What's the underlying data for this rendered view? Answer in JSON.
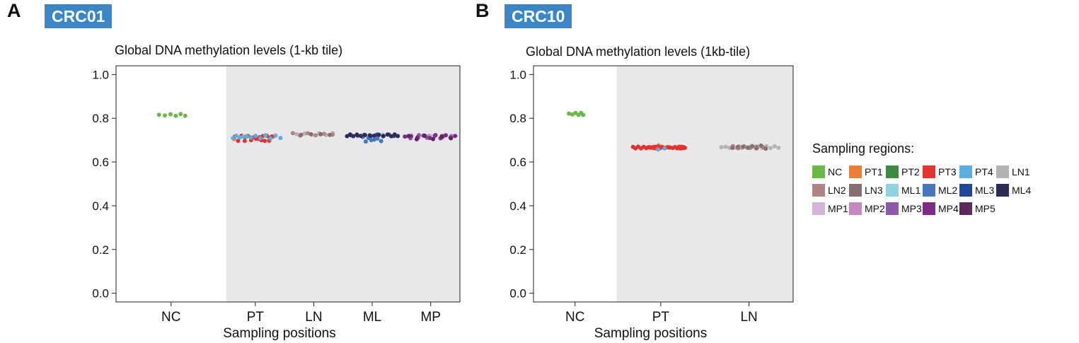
{
  "panels": [
    {
      "letter": "A",
      "badge": "CRC01",
      "chart_data": {
        "type": "scatter",
        "title": "Global DNA methylation levels (1-kb tile)",
        "xlabel": "Sampling positions",
        "ylabel": "",
        "categories": [
          "NC",
          "PT",
          "LN",
          "ML",
          "MP"
        ],
        "shaded_categories": [
          "PT",
          "LN",
          "ML",
          "MP"
        ],
        "ylim": [
          -0.04,
          1.04
        ],
        "yticks": [
          "0.0",
          "0.2",
          "0.4",
          "0.6",
          "0.8",
          "1.0"
        ],
        "series": [
          {
            "name": "NC",
            "category": "NC",
            "n": 6,
            "center": 0.815,
            "spread": 0.004,
            "width": 0.28
          },
          {
            "name": "PT1",
            "category": "PT",
            "n": 4,
            "center": 0.712,
            "spread": 0.007,
            "width": 0.8
          },
          {
            "name": "PT2",
            "category": "PT",
            "n": 2,
            "center": 0.712,
            "spread": 0.005,
            "width": 0.5
          },
          {
            "name": "PT3",
            "category": "PT",
            "n": 16,
            "center": 0.708,
            "spread": 0.012,
            "width": 0.75
          },
          {
            "name": "PT4",
            "category": "PT",
            "n": 12,
            "center": 0.715,
            "spread": 0.007,
            "width": 0.95
          },
          {
            "name": "LN1",
            "category": "LN",
            "n": 6,
            "center": 0.728,
            "spread": 0.004,
            "width": 0.7
          },
          {
            "name": "LN2",
            "category": "LN",
            "n": 6,
            "center": 0.726,
            "spread": 0.006,
            "width": 0.8
          },
          {
            "name": "LN3",
            "category": "LN",
            "n": 4,
            "center": 0.726,
            "spread": 0.005,
            "width": 0.6
          },
          {
            "name": "ML1",
            "category": "ML",
            "n": 2,
            "center": 0.722,
            "spread": 0.003,
            "width": 0.5
          },
          {
            "name": "ML2",
            "category": "ML",
            "n": 7,
            "center": 0.703,
            "spread": 0.012,
            "width": 0.45
          },
          {
            "name": "ML3",
            "category": "ML",
            "n": 8,
            "center": 0.722,
            "spread": 0.004,
            "width": 0.85
          },
          {
            "name": "ML4",
            "category": "ML",
            "n": 14,
            "center": 0.722,
            "spread": 0.004,
            "width": 1.0
          },
          {
            "name": "MP1",
            "category": "MP",
            "n": 5,
            "center": 0.72,
            "spread": 0.006,
            "width": 0.85
          },
          {
            "name": "MP2",
            "category": "MP",
            "n": 5,
            "center": 0.714,
            "spread": 0.006,
            "width": 0.85
          },
          {
            "name": "MP3",
            "category": "MP",
            "n": 6,
            "center": 0.716,
            "spread": 0.008,
            "width": 0.9
          },
          {
            "name": "MP4",
            "category": "MP",
            "n": 10,
            "center": 0.716,
            "spread": 0.007,
            "width": 1.0
          },
          {
            "name": "MP5",
            "category": "MP",
            "n": 6,
            "center": 0.712,
            "spread": 0.008,
            "width": 0.9
          }
        ]
      }
    },
    {
      "letter": "B",
      "badge": "CRC10",
      "chart_data": {
        "type": "scatter",
        "title": "Global DNA methylation levels (1kb-tile)",
        "xlabel": "Sampling positions",
        "ylabel": "",
        "categories": [
          "NC",
          "PT",
          "LN"
        ],
        "shaded_categories": [
          "PT",
          "LN"
        ],
        "ylim": [
          -0.04,
          1.04
        ],
        "yticks": [
          "0.0",
          "0.2",
          "0.4",
          "0.6",
          "0.8",
          "1.0"
        ],
        "series": [
          {
            "name": "NC",
            "category": "NC",
            "n": 6,
            "center": 0.82,
            "spread": 0.005,
            "width": 0.2
          },
          {
            "name": "PT1",
            "category": "PT",
            "n": 3,
            "center": 0.672,
            "spread": 0.004,
            "width": 0.25
          },
          {
            "name": "PT2",
            "category": "PT",
            "n": 3,
            "center": 0.667,
            "spread": 0.004,
            "width": 0.2
          },
          {
            "name": "PT3",
            "category": "PT",
            "n": 28,
            "center": 0.666,
            "spread": 0.004,
            "width": 0.7
          },
          {
            "name": "PT4",
            "category": "PT",
            "n": 2,
            "center": 0.66,
            "spread": 0.003,
            "width": 0.1
          },
          {
            "name": "LN1",
            "category": "LN",
            "n": 18,
            "center": 0.668,
            "spread": 0.004,
            "width": 0.75
          },
          {
            "name": "LN2",
            "category": "LN",
            "n": 6,
            "center": 0.668,
            "spread": 0.005,
            "width": 0.4
          },
          {
            "name": "LN3",
            "category": "LN",
            "n": 8,
            "center": 0.668,
            "spread": 0.007,
            "width": 0.5
          }
        ]
      }
    }
  ],
  "legend": {
    "title": "Sampling regions:",
    "items": [
      {
        "label": "NC",
        "color": "#6ab845"
      },
      {
        "label": "PT1",
        "color": "#f07d33"
      },
      {
        "label": "PT2",
        "color": "#3e8a45"
      },
      {
        "label": "PT3",
        "color": "#e4332e"
      },
      {
        "label": "PT4",
        "color": "#5aaee0"
      },
      {
        "label": "LN1",
        "color": "#b3b3b3"
      },
      {
        "label": "LN2",
        "color": "#b08585"
      },
      {
        "label": "LN3",
        "color": "#85706f"
      },
      {
        "label": "ML1",
        "color": "#90d2e0"
      },
      {
        "label": "ML2",
        "color": "#4677be"
      },
      {
        "label": "ML3",
        "color": "#22469a"
      },
      {
        "label": "ML4",
        "color": "#2d2e58"
      },
      {
        "label": "MP1",
        "color": "#d3b3d8"
      },
      {
        "label": "MP2",
        "color": "#c487c0"
      },
      {
        "label": "MP3",
        "color": "#8c5aa8"
      },
      {
        "label": "MP4",
        "color": "#7b2d86"
      },
      {
        "label": "MP5",
        "color": "#5b2a5c"
      }
    ]
  },
  "shade_color": "#e8e8ea"
}
